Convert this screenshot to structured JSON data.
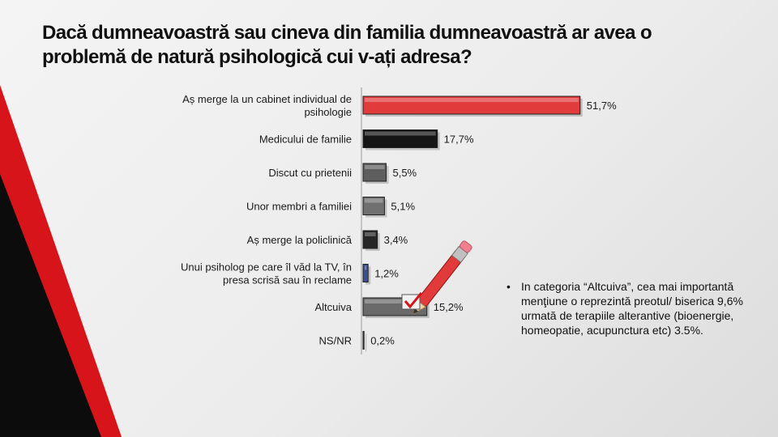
{
  "slide": {
    "title": "Dacă dumneavoastră sau cineva din familia dumneavoastră ar avea o problemă de natură psihologică cui v-ați adresa?",
    "note_bullet": "•",
    "note": "In categoria “Altcuiva”, cea mai importantă menţiune o reprezintă preotul/ biserica 9,6% urmată de terapiile alterantive (bioenergie, homeopatie, acupunctura etc) 3.5%.",
    "colors": {
      "accent_red": "#d7141a",
      "dark": "#111111",
      "grey": "#7a7a7a",
      "navy": "#3d4f8f"
    }
  },
  "chart_data": {
    "type": "bar",
    "orientation": "horizontal",
    "categories": [
      "Aș merge la un cabinet individual  de psihologie",
      "Medicului de familie",
      "Discut cu prietenii",
      "Unor membri a familiei",
      "Aș merge la policlinică",
      "Unui psiholog pe care îl văd la TV, în presa scrisă sau în reclame",
      "Altcuiva",
      "NS/NR"
    ],
    "values": [
      51.7,
      17.7,
      5.5,
      5.1,
      3.4,
      1.2,
      15.2,
      0.2
    ],
    "value_labels": [
      "51,7%",
      "17,7%",
      "5,5%",
      "5,1%",
      "3,4%",
      "1,2%",
      "15,2%",
      "0,2%"
    ],
    "bar_colors": [
      "#e23b3b",
      "#151515",
      "#5e5e5e",
      "#707070",
      "#262626",
      "#3d4f8f",
      "#6a6a6a",
      "#6a6a6a"
    ],
    "xlim": [
      0,
      60
    ],
    "grid": false,
    "legend": "none"
  }
}
